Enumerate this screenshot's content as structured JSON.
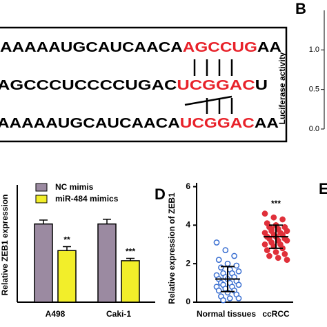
{
  "chart_data": [
    {
      "type": "sequence",
      "lines": [
        [
          {
            "text": "AAAAAUGCAUCAACA",
            "color": "#000000"
          },
          {
            "text": "AGCCUG",
            "color": "#e8222a"
          },
          {
            "text": "AA",
            "color": "#000000"
          }
        ],
        [
          {
            "text": "AGCCCUCCCCUGAC",
            "color": "#000000"
          },
          {
            "text": "UCGGAC",
            "color": "#e8222a"
          },
          {
            "text": "U",
            "color": "#000000"
          }
        ],
        [
          {
            "text": "AAAAAUGCAUCAACA",
            "color": "#000000"
          },
          {
            "text": "UCGGAC",
            "color": "#e8222a"
          },
          {
            "text": "AA",
            "color": "#000000"
          }
        ]
      ]
    },
    {
      "type": "axis",
      "panel": "B",
      "y_label": "Luciferase activity",
      "ylim": [
        0,
        1.5
      ],
      "yticks": [
        {
          "value": 0,
          "label": "0.0"
        },
        {
          "value": 0.5,
          "label": "0.5"
        },
        {
          "value": 1,
          "label": "1.0"
        }
      ]
    },
    {
      "type": "bar",
      "y_label": "Relative ZEB1 expression",
      "categories": [
        "A498",
        "Caki-1"
      ],
      "ylim": [
        0,
        1.5
      ],
      "series": [
        {
          "name": "NC mimis",
          "color": "#9b8aa1",
          "values": [
            1.0,
            1.0
          ],
          "errors": [
            0.05,
            0.06
          ]
        },
        {
          "name": "miR-484 mimics",
          "color": "#f2ee2a",
          "values": [
            0.66,
            0.53
          ],
          "errors": [
            0.05,
            0.03
          ],
          "annotations": [
            "**",
            "***"
          ]
        }
      ]
    },
    {
      "type": "scatter",
      "panel": "D",
      "y_label": "Relative expression of ZEB1",
      "categories": [
        "Normal tissues",
        "ccRCC"
      ],
      "ylim": [
        0,
        6.2
      ],
      "yticks": [
        0,
        2,
        4,
        6
      ],
      "groups": [
        {
          "color": "#3a6fd1",
          "mean": 1.2,
          "sd": 0.65,
          "values": [
            3.1,
            2.7,
            2.4,
            2.2,
            2.0,
            1.9,
            1.8,
            1.7,
            1.6,
            1.5,
            1.5,
            1.4,
            1.3,
            1.3,
            1.2,
            1.2,
            1.1,
            1.0,
            1.0,
            0.9,
            0.9,
            0.8,
            0.8,
            0.7,
            0.6,
            0.6,
            0.5,
            0.4,
            0.3,
            0.2,
            0.2,
            0.1
          ]
        },
        {
          "color": "#e0303a",
          "mean": 3.4,
          "sd": 0.6,
          "annotation": "***",
          "values": [
            4.6,
            4.4,
            4.3,
            4.1,
            4.0,
            3.9,
            3.9,
            3.8,
            3.7,
            3.7,
            3.6,
            3.6,
            3.5,
            3.5,
            3.4,
            3.4,
            3.3,
            3.3,
            3.2,
            3.2,
            3.1,
            3.0,
            3.0,
            2.9,
            2.8,
            2.7,
            2.6,
            2.5,
            2.4,
            2.3,
            2.2,
            3.8
          ]
        }
      ]
    },
    {
      "type": "label",
      "panel": "E"
    }
  ]
}
